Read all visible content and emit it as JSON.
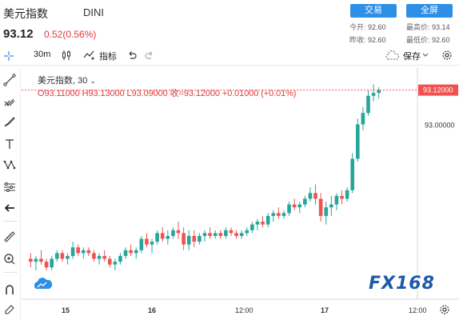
{
  "header": {
    "title": "美元指数",
    "code": "DINI",
    "price": "93.12",
    "change": "0.52(0.56%)",
    "buttons": {
      "trade": "交易",
      "fullscreen": "全屏"
    },
    "stats": [
      {
        "label": "今开:",
        "value": "92.60"
      },
      {
        "label": "最高价:",
        "value": "93.14"
      },
      {
        "label": "昨收:",
        "value": "92.60"
      },
      {
        "label": "最低价:",
        "value": "92.60"
      }
    ]
  },
  "toolbar": {
    "interval": "30m",
    "indicator_label": "指标",
    "save_label": "保存",
    "icons": [
      "candles-icon",
      "indicator-icon",
      "undo-icon",
      "redo-icon",
      "cloud-icon",
      "gear-icon"
    ]
  },
  "left_tools": [
    "crosshair-icon",
    "trend-line-icon",
    "pitchfork-icon",
    "brush-icon",
    "text-icon",
    "pattern-icon",
    "prediction-icon",
    "back-arrow-icon",
    "ruler-icon",
    "zoom-in-icon",
    "magnet-icon",
    "pencil-lock-icon"
  ],
  "legend": {
    "name": "美元指数, 30",
    "ohlc": "O93.11000  H93.13000  L93.09000  收=93.12000  +0.01000  (+0.01%)"
  },
  "logo": {
    "text": "FX168"
  },
  "colors": {
    "up": "#26a69a",
    "down": "#ef5350",
    "accent": "#2e8fe6",
    "price_tag": "#ef5350",
    "logo": "#1e5aa8"
  },
  "chart_data": {
    "type": "candlestick",
    "x_ticks": [
      "15",
      "16",
      "12:00",
      "17",
      "12:00"
    ],
    "y_ticks": [
      "93.00000"
    ],
    "last_price_label": "93.12000",
    "ylim": [
      92.4,
      93.2
    ],
    "candles": [
      [
        92.53,
        92.55,
        92.5,
        92.52
      ],
      [
        92.52,
        92.54,
        92.49,
        92.53
      ],
      [
        92.53,
        92.56,
        92.51,
        92.52
      ],
      [
        92.52,
        92.53,
        92.49,
        92.5
      ],
      [
        92.5,
        92.54,
        92.49,
        92.53
      ],
      [
        92.53,
        92.56,
        92.52,
        92.55
      ],
      [
        92.55,
        92.56,
        92.52,
        92.53
      ],
      [
        92.53,
        92.55,
        92.51,
        92.54
      ],
      [
        92.54,
        92.59,
        92.53,
        92.57
      ],
      [
        92.57,
        92.58,
        92.54,
        92.55
      ],
      [
        92.55,
        92.57,
        92.53,
        92.56
      ],
      [
        92.56,
        92.57,
        92.54,
        92.55
      ],
      [
        92.55,
        92.56,
        92.52,
        92.53
      ],
      [
        92.53,
        92.55,
        92.51,
        92.54
      ],
      [
        92.54,
        92.56,
        92.52,
        92.53
      ],
      [
        92.53,
        92.54,
        92.5,
        92.51
      ],
      [
        92.51,
        92.53,
        92.49,
        92.52
      ],
      [
        92.52,
        92.55,
        92.51,
        92.54
      ],
      [
        92.54,
        92.57,
        92.53,
        92.56
      ],
      [
        92.56,
        92.58,
        92.54,
        92.55
      ],
      [
        92.55,
        92.57,
        92.53,
        92.56
      ],
      [
        92.56,
        92.61,
        92.55,
        92.6
      ],
      [
        92.6,
        92.62,
        92.57,
        92.58
      ],
      [
        92.58,
        92.6,
        92.55,
        92.59
      ],
      [
        92.59,
        92.63,
        92.58,
        92.62
      ],
      [
        92.62,
        92.64,
        92.59,
        92.6
      ],
      [
        92.6,
        92.63,
        92.58,
        92.61
      ],
      [
        92.61,
        92.64,
        92.6,
        92.63
      ],
      [
        92.63,
        92.66,
        92.6,
        92.62
      ],
      [
        92.62,
        92.64,
        92.56,
        92.58
      ],
      [
        92.58,
        92.63,
        92.56,
        92.61
      ],
      [
        92.61,
        92.63,
        92.57,
        92.59
      ],
      [
        92.59,
        92.62,
        92.58,
        92.61
      ],
      [
        92.61,
        92.63,
        92.59,
        92.62
      ],
      [
        92.62,
        92.64,
        92.6,
        92.61
      ],
      [
        92.61,
        92.63,
        92.6,
        92.62
      ],
      [
        92.62,
        92.63,
        92.6,
        92.61
      ],
      [
        92.61,
        92.64,
        92.6,
        92.63
      ],
      [
        92.63,
        92.64,
        92.61,
        92.62
      ],
      [
        92.62,
        92.63,
        92.6,
        92.61
      ],
      [
        92.61,
        92.63,
        92.6,
        92.62
      ],
      [
        92.62,
        92.64,
        92.61,
        92.63
      ],
      [
        92.63,
        92.66,
        92.62,
        92.65
      ],
      [
        92.65,
        92.67,
        92.63,
        92.66
      ],
      [
        92.66,
        92.68,
        92.64,
        92.65
      ],
      [
        92.65,
        92.69,
        92.64,
        92.68
      ],
      [
        92.68,
        92.7,
        92.66,
        92.69
      ],
      [
        92.69,
        92.71,
        92.67,
        92.68
      ],
      [
        92.68,
        92.7,
        92.67,
        92.69
      ],
      [
        92.69,
        92.73,
        92.68,
        92.72
      ],
      [
        92.72,
        92.74,
        92.7,
        92.71
      ],
      [
        92.71,
        92.73,
        92.69,
        92.72
      ],
      [
        92.72,
        92.75,
        92.71,
        92.74
      ],
      [
        92.74,
        92.78,
        92.73,
        92.76
      ],
      [
        92.76,
        92.79,
        92.72,
        92.74
      ],
      [
        92.74,
        92.76,
        92.66,
        92.68
      ],
      [
        92.68,
        92.73,
        92.65,
        92.71
      ],
      [
        92.71,
        92.75,
        92.68,
        92.72
      ],
      [
        92.72,
        92.76,
        92.7,
        92.75
      ],
      [
        92.75,
        92.77,
        92.72,
        92.74
      ],
      [
        92.74,
        92.78,
        92.73,
        92.77
      ],
      [
        92.77,
        92.9,
        92.76,
        92.88
      ],
      [
        92.88,
        93.02,
        92.87,
        93.0
      ],
      [
        93.0,
        93.06,
        92.98,
        93.04
      ],
      [
        93.04,
        93.12,
        93.03,
        93.1
      ],
      [
        93.1,
        93.14,
        93.08,
        93.11
      ],
      [
        93.11,
        93.13,
        93.09,
        93.12
      ]
    ]
  }
}
